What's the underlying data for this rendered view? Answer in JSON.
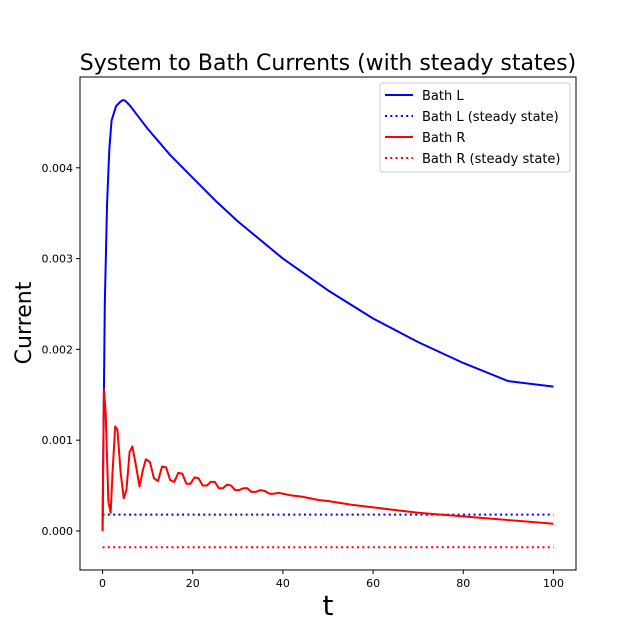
{
  "chart_data": {
    "type": "line",
    "title": "System to Bath Currents (with steady states)",
    "xlabel": "t",
    "ylabel": "Current",
    "xlim": [
      -5,
      105
    ],
    "ylim": [
      -0.00043,
      0.005
    ],
    "xticks": [
      0,
      20,
      40,
      60,
      80,
      100
    ],
    "xtick_labels": [
      "0",
      "20",
      "40",
      "60",
      "80",
      "100"
    ],
    "yticks": [
      0,
      0.001,
      0.002,
      0.003,
      0.004
    ],
    "ytick_labels": [
      "0.000",
      "0.001",
      "0.002",
      "0.003",
      "0.004"
    ],
    "grid": false,
    "legend_position": "top-right",
    "series": [
      {
        "name": "Bath L",
        "style": "solid",
        "color": "#0000ff",
        "x": [
          0,
          0.5,
          1,
          1.5,
          2,
          3,
          4,
          4.5,
          5,
          6,
          8,
          10,
          15,
          20,
          25,
          30,
          40,
          50,
          60,
          70,
          80,
          90,
          100
        ],
        "y": [
          0,
          0.0025,
          0.0036,
          0.0042,
          0.00452,
          0.00468,
          0.00473,
          0.004745,
          0.00474,
          0.00469,
          0.00456,
          0.00443,
          0.00414,
          0.00389,
          0.00364,
          0.00341,
          0.003,
          0.00265,
          0.00234,
          0.00208,
          0.00185,
          0.00165,
          0.00159
        ]
      },
      {
        "name": "Bath L (steady state)",
        "style": "dotted",
        "color": "#0000ff",
        "x": [
          0,
          100
        ],
        "y": [
          0.00018,
          0.00018
        ]
      },
      {
        "name": "Bath R",
        "style": "solid",
        "color": "#ff0000",
        "x": [
          0,
          0.3,
          0.7,
          1,
          1.3,
          1.8,
          2.2,
          2.8,
          3.3,
          4,
          4.7,
          5.3,
          6,
          6.6,
          7.3,
          8.2,
          9,
          9.6,
          10.5,
          11.4,
          12.3,
          13.2,
          14.1,
          15,
          15.9,
          16.8,
          17.7,
          18.6,
          19.5,
          20.4,
          21.3,
          22.2,
          23.1,
          24,
          24.9,
          25.8,
          26.7,
          27.6,
          28.5,
          29.4,
          30.3,
          31.2,
          32.1,
          33,
          34,
          35,
          36,
          37,
          38,
          39,
          40,
          42,
          44,
          46,
          48,
          50,
          55,
          60,
          65,
          70,
          75,
          80,
          85,
          90,
          95,
          100
        ],
        "y": [
          0,
          0.00156,
          0.0013,
          0.0008,
          0.00032,
          0.0002,
          0.00063,
          0.00115,
          0.00112,
          0.00065,
          0.00036,
          0.00045,
          0.00087,
          0.00093,
          0.00075,
          0.00049,
          0.00068,
          0.00079,
          0.00076,
          0.00058,
          0.00055,
          0.00071,
          0.0007,
          0.00056,
          0.00054,
          0.00064,
          0.00063,
          0.00052,
          0.00052,
          0.00059,
          0.00058,
          0.0005,
          0.0005,
          0.00054,
          0.00054,
          0.00047,
          0.00047,
          0.00051,
          0.0005,
          0.00045,
          0.00045,
          0.00047,
          0.00047,
          0.00043,
          0.00043,
          0.00045,
          0.00044,
          0.00041,
          0.00041,
          0.00042,
          0.00041,
          0.00039,
          0.00038,
          0.00036,
          0.00034,
          0.00033,
          0.00029,
          0.00026,
          0.00023,
          0.0002,
          0.00018,
          0.00016,
          0.00014,
          0.00012,
          0.0001,
          8e-05
        ]
      },
      {
        "name": "Bath R (steady state)",
        "style": "dotted",
        "color": "#ff0000",
        "x": [
          0,
          100
        ],
        "y": [
          -0.00018,
          -0.00018
        ]
      }
    ]
  }
}
